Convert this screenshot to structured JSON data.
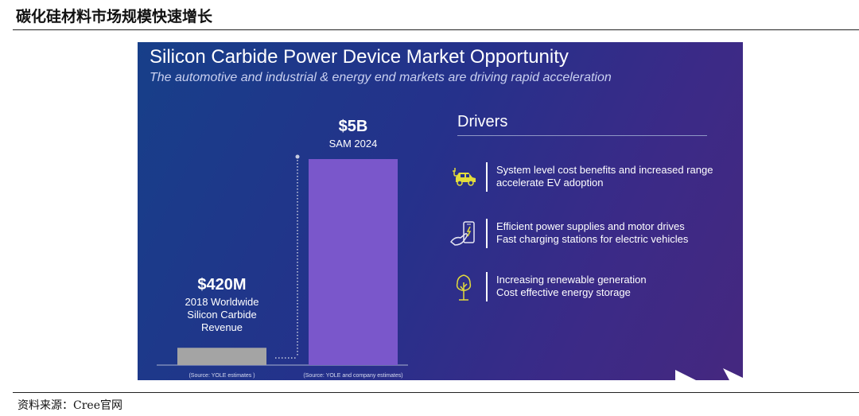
{
  "page": {
    "title": "碳化硅材料市场规模快速增长",
    "source": "资料来源：Cree官网"
  },
  "slide": {
    "title": "Silicon Carbide Power Device Market Opportunity",
    "subtitle": "The automotive and industrial & energy end markets are driving rapid acceleration"
  },
  "chart_data": {
    "type": "bar",
    "categories": [
      "2018",
      "2024"
    ],
    "values": [
      0.42,
      5
    ],
    "unit": "USD billion",
    "bars": [
      {
        "value": 0.42,
        "value_label": "$420M",
        "description_lines": [
          "2018 Worldwide",
          "Silicon Carbide",
          "Revenue"
        ],
        "source": "(Source: YOLE estimates )",
        "color": "#a4a4a4"
      },
      {
        "value": 5,
        "value_label": "$5B",
        "description_lines": [
          "SAM 2024"
        ],
        "source": "(Source: YOLE and company estimates)",
        "color": "#7a57cb"
      }
    ],
    "ylim": [
      0,
      5
    ],
    "grid": false,
    "title": "",
    "xlabel": "",
    "ylabel": ""
  },
  "drivers": {
    "heading": "Drivers",
    "items": [
      {
        "icon": "electric-car-icon",
        "lines": [
          "System level cost benefits and increased range",
          "accelerate EV adoption"
        ]
      },
      {
        "icon": "phone-charging-icon",
        "lines": [
          "Efficient power supplies and motor drives",
          "Fast charging stations for electric vehicles"
        ]
      },
      {
        "icon": "tree-icon",
        "lines": [
          "Increasing renewable generation",
          "Cost effective energy storage"
        ]
      }
    ]
  },
  "colors": {
    "slide_background_start": "#173f89",
    "slide_background_end": "#45287f",
    "bar_2024": "#7a57cb",
    "bar_2018": "#a4a4a4",
    "icon_accent": "#e3dc3b"
  }
}
